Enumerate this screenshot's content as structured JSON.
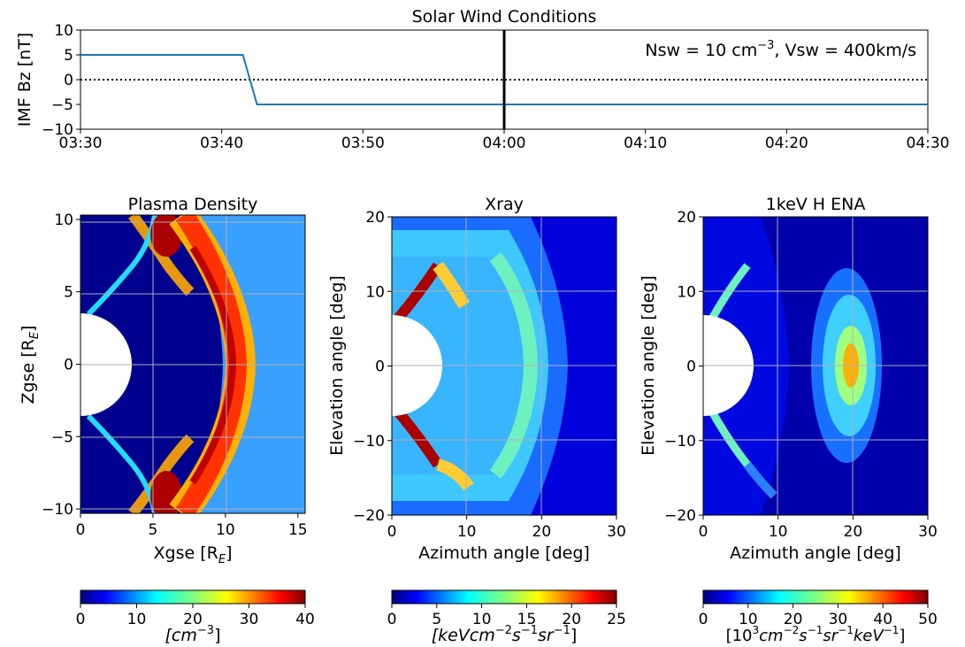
{
  "figure": {
    "top_title": "Solar Wind Conditions",
    "annotation_main": "Nsw = 10 cm",
    "annotation_sup": "−3",
    "annotation_tail": ", Vsw = 400km/s"
  },
  "colors": {
    "series": "#1f77b4",
    "vline": "#000000",
    "grid": "#b0b0b0",
    "jet": [
      "#00007f",
      "#0000ff",
      "#007fff",
      "#00ffff",
      "#7fff7f",
      "#ffff00",
      "#ff7f00",
      "#ff0000",
      "#7f0000"
    ]
  },
  "chart_data": [
    {
      "type": "line",
      "title": "Solar Wind Conditions",
      "xlabel": "",
      "ylabel": "IMF Bz [nT]",
      "xticks": [
        "03:30",
        "03:40",
        "03:50",
        "04:00",
        "04:10",
        "04:20",
        "04:30"
      ],
      "yticks": [
        "10",
        "5",
        "0",
        "−5",
        "−10"
      ],
      "xlim": [
        "03:30",
        "04:30"
      ],
      "ylim": [
        -10,
        10
      ],
      "series": [
        {
          "x": [
            "03:30",
            "03:41.5",
            "03:42.5",
            "04:30"
          ],
          "y": [
            5,
            5,
            -5,
            -5
          ]
        }
      ],
      "hlines": [
        {
          "y": 0,
          "style": "dotted"
        }
      ],
      "vlines": [
        {
          "x": "04:00"
        }
      ]
    },
    {
      "type": "heatmap",
      "title": "Plasma Density",
      "xlabel": "Xgse [R",
      "xlabel_sub": "E",
      "xlabel_tail": "]",
      "ylabel": "Zgse [R",
      "ylabel_sub": "E",
      "ylabel_tail": "]",
      "xlim": [
        0,
        15.5
      ],
      "ylim": [
        -10.3,
        10.3
      ],
      "xticks": [
        "0",
        "5",
        "10",
        "15"
      ],
      "yticks": [
        "10",
        "5",
        "0",
        "−5",
        "−10"
      ],
      "colorbar": {
        "min": 0,
        "max": 40,
        "ticks": [
          "0",
          "10",
          "20",
          "30",
          "40"
        ],
        "label": "[cm",
        "label_sup": "−3",
        "label_tail": "]"
      }
    },
    {
      "type": "heatmap",
      "title": "Xray",
      "xlabel": "Azimuth angle [deg]",
      "ylabel": "Elevation angle [deg]",
      "xlim": [
        0,
        30
      ],
      "ylim": [
        -20,
        20
      ],
      "xticks": [
        "0",
        "10",
        "20",
        "30"
      ],
      "yticks": [
        "20",
        "10",
        "0",
        "−10",
        "−20"
      ],
      "colorbar": {
        "min": 0,
        "max": 25,
        "ticks": [
          "0",
          "5",
          "10",
          "15",
          "20",
          "25"
        ],
        "label": "[keVcm",
        "label_sup": "−2",
        "label_mid": "s",
        "label_sup2": "−1",
        "label_mid2": "sr",
        "label_sup3": "−1",
        "label_tail": "]"
      }
    },
    {
      "type": "heatmap",
      "title": "1keV H ENA",
      "xlabel": "Azimuth angle [deg]",
      "ylabel": "Elevation angle [deg]",
      "xlim": [
        0,
        30
      ],
      "ylim": [
        -20,
        20
      ],
      "xticks": [
        "0",
        "10",
        "20",
        "30"
      ],
      "yticks": [
        "20",
        "10",
        "0",
        "−10",
        "−20"
      ],
      "colorbar": {
        "min": 0,
        "max": 50,
        "ticks": [
          "0",
          "10",
          "20",
          "30",
          "40",
          "50"
        ],
        "label": "[10",
        "label_sup": "3",
        "label_mid": "cm",
        "label_sup2": "−2",
        "label_mid2": "s",
        "label_sup3": "−1",
        "label_mid3": "sr",
        "label_sup4": "−1",
        "label_mid4": "keV",
        "label_sup5": "−1",
        "label_tail": "]"
      }
    }
  ]
}
